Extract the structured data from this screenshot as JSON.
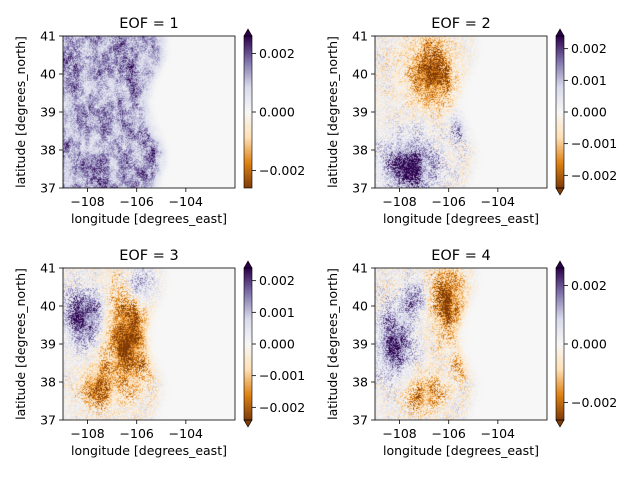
{
  "figure": {
    "xlabel": "longitude [degrees_east]",
    "ylabel": "latitude [degrees_north]",
    "colormap": {
      "name": "PuOr",
      "stops": [
        "#7f3b08",
        "#e08214",
        "#fee0b6",
        "#f7f7f7",
        "#d8daeb",
        "#8073ac",
        "#2d004b"
      ]
    }
  },
  "chart_data": [
    {
      "type": "heatmap",
      "title": "EOF = 1",
      "xlim": [
        -109.0,
        -102.0
      ],
      "ylim": [
        37.0,
        41.0
      ],
      "xticks": [
        -108,
        -106,
        -104
      ],
      "xtick_labels": [
        "−108",
        "−106",
        "−104"
      ],
      "yticks": [
        37,
        38,
        39,
        40,
        41
      ],
      "ytick_labels": [
        "37",
        "38",
        "39",
        "40",
        "41"
      ],
      "clim": [
        -0.0026,
        0.0026
      ],
      "cticks": [
        0.002,
        0.0,
        -0.002
      ],
      "ctick_labels": [
        "0.002",
        "0.000",
        "−0.002"
      ],
      "extend": "max",
      "pattern": "eof1"
    },
    {
      "type": "heatmap",
      "title": "EOF = 2",
      "xlim": [
        -109.0,
        -102.0
      ],
      "ylim": [
        37.0,
        41.0
      ],
      "xticks": [
        -108,
        -106,
        -104
      ],
      "xtick_labels": [
        "−108",
        "−106",
        "−104"
      ],
      "yticks": [
        37,
        38,
        39,
        40,
        41
      ],
      "ytick_labels": [
        "37",
        "38",
        "39",
        "40",
        "41"
      ],
      "clim": [
        -0.0024,
        0.0024
      ],
      "cticks": [
        0.002,
        0.001,
        0.0,
        -0.001,
        -0.002
      ],
      "ctick_labels": [
        "0.002",
        "0.001",
        "0.000",
        "−0.001",
        "−0.002"
      ],
      "extend": "both",
      "pattern": "eof2"
    },
    {
      "type": "heatmap",
      "title": "EOF = 3",
      "xlim": [
        -109.0,
        -102.0
      ],
      "ylim": [
        37.0,
        41.0
      ],
      "xticks": [
        -108,
        -106,
        -104
      ],
      "xtick_labels": [
        "−108",
        "−106",
        "−104"
      ],
      "yticks": [
        37,
        38,
        39,
        40,
        41
      ],
      "ytick_labels": [
        "37",
        "38",
        "39",
        "40",
        "41"
      ],
      "clim": [
        -0.0024,
        0.0024
      ],
      "cticks": [
        0.002,
        0.001,
        0.0,
        -0.001,
        -0.002
      ],
      "ctick_labels": [
        "0.002",
        "0.001",
        "0.000",
        "−0.001",
        "−0.002"
      ],
      "extend": "both",
      "pattern": "eof3"
    },
    {
      "type": "heatmap",
      "title": "EOF = 4",
      "xlim": [
        -109.0,
        -102.0
      ],
      "ylim": [
        37.0,
        41.0
      ],
      "xticks": [
        -108,
        -106,
        -104
      ],
      "xtick_labels": [
        "−108",
        "−106",
        "−104"
      ],
      "yticks": [
        37,
        38,
        39,
        40,
        41
      ],
      "ytick_labels": [
        "37",
        "38",
        "39",
        "40",
        "41"
      ],
      "clim": [
        -0.0026,
        0.0026
      ],
      "cticks": [
        0.002,
        0.0,
        -0.002
      ],
      "ctick_labels": [
        "0.002",
        "0.000",
        "−0.002"
      ],
      "extend": "both",
      "pattern": "eof4"
    }
  ]
}
